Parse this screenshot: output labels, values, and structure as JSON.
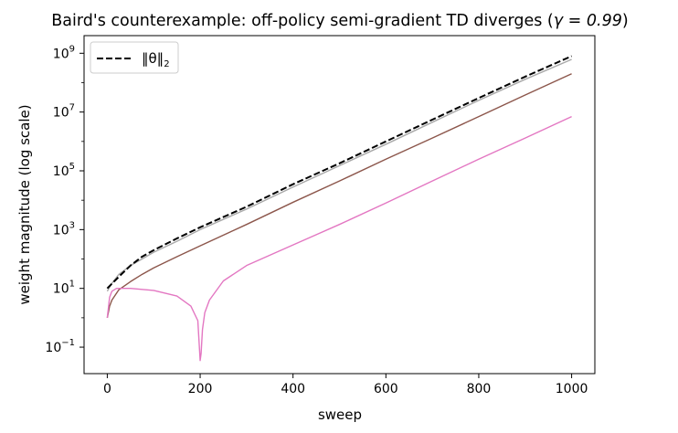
{
  "chart_data": {
    "type": "line",
    "title_prefix": "Baird's counterexample: off-policy semi-gradient TD diverges (",
    "title_math": "γ = 0.99",
    "title_suffix": ")",
    "xlabel": "sweep",
    "ylabel": "weight magnitude (log scale)",
    "xlim": [
      -50,
      1050
    ],
    "ylim_log10": [
      -1.9,
      9.6
    ],
    "yscale": "log",
    "x_ticks": [
      0,
      200,
      400,
      600,
      800,
      1000
    ],
    "x_tick_labels": [
      "0",
      "200",
      "400",
      "600",
      "800",
      "1000"
    ],
    "y_ticks_log10": [
      -1,
      1,
      3,
      5,
      7,
      9
    ],
    "y_tick_labels": [
      {
        "base": "10",
        "exp": "−1"
      },
      {
        "base": "10",
        "exp": "1"
      },
      {
        "base": "10",
        "exp": "3"
      },
      {
        "base": "10",
        "exp": "5"
      },
      {
        "base": "10",
        "exp": "7"
      },
      {
        "base": "10",
        "exp": "9"
      }
    ],
    "legend": {
      "placement": "upper-left",
      "entries": [
        {
          "label": "‖θ‖",
          "sub": "2",
          "series": "norm"
        }
      ]
    },
    "grid": false,
    "series": [
      {
        "id": "norm",
        "color": "#000000",
        "dashed": true,
        "x": [
          0,
          25,
          50,
          75,
          100,
          150,
          200,
          300,
          400,
          500,
          600,
          700,
          800,
          900,
          1000
        ],
        "y": [
          10,
          25,
          60,
          120,
          200,
          500,
          1200,
          6000,
          35000,
          180000,
          1000000,
          5500000,
          30000000,
          160000000,
          800000000
        ]
      },
      {
        "id": "grey",
        "color": "#a9a9a9",
        "dashed": false,
        "x": [
          0,
          10,
          25,
          50,
          75,
          100,
          150,
          200,
          300,
          400,
          500,
          600,
          700,
          800,
          900,
          1000
        ],
        "y": [
          8,
          15,
          30,
          60,
          100,
          170,
          400,
          1000,
          5000,
          28000,
          150000,
          800000,
          4500000,
          25000000,
          130000000,
          620000000
        ]
      },
      {
        "id": "brown",
        "color": "#8c564b",
        "dashed": false,
        "x": [
          0,
          5,
          10,
          25,
          50,
          75,
          100,
          150,
          200,
          300,
          400,
          500,
          600,
          700,
          800,
          900,
          1000
        ],
        "y": [
          1,
          2.5,
          4,
          9,
          17,
          30,
          50,
          120,
          280,
          1500,
          8500,
          45000,
          250000,
          1300000,
          7000000,
          38000000,
          200000000
        ]
      },
      {
        "id": "pink",
        "color": "#e377c2",
        "dashed": false,
        "x": [
          0,
          5,
          10,
          20,
          50,
          100,
          150,
          180,
          195,
          200,
          202,
          205,
          210,
          220,
          250,
          300,
          400,
          500,
          600,
          700,
          800,
          900,
          1000
        ],
        "y": [
          1,
          5,
          8,
          10,
          10,
          8.5,
          5.5,
          2.5,
          0.8,
          0.035,
          0.06,
          0.4,
          1.5,
          4,
          18,
          60,
          300,
          1500,
          8000,
          45000,
          250000,
          1300000,
          7000000
        ]
      }
    ]
  }
}
